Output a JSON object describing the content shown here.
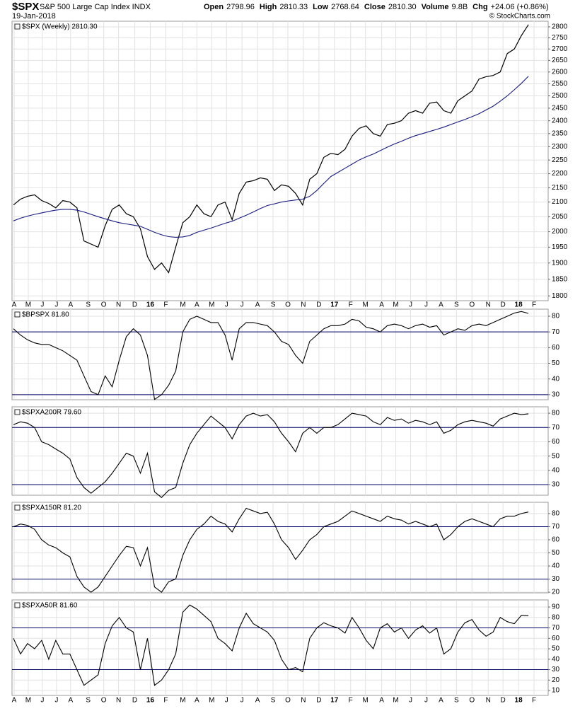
{
  "header": {
    "symbol": "$SPX",
    "name": "S&P 500 Large Cap Index INDX",
    "date": "19-Jan-2018",
    "quote": [
      {
        "label": "Open",
        "value": "2798.96"
      },
      {
        "label": "High",
        "value": "2810.33"
      },
      {
        "label": "Low",
        "value": "2768.64"
      },
      {
        "label": "Close",
        "value": "2810.30"
      },
      {
        "label": "Volume",
        "value": "9.8B"
      },
      {
        "label": "Chg",
        "value": "+24.06 (+0.86%)"
      }
    ],
    "credit": "© StockCharts.com"
  },
  "chart_data": [
    {
      "type": "line",
      "title": "$SPX (Weekly) 2810.30",
      "log_scale": true,
      "grid": true,
      "xlim": [
        -0.2,
        75.8
      ],
      "xticks": [
        {
          "value": 0.1,
          "label": "A"
        },
        {
          "value": 2.1,
          "label": "M"
        },
        {
          "value": 4.1,
          "label": "J"
        },
        {
          "value": 6.1,
          "label": "J"
        },
        {
          "value": 8.1,
          "label": "A"
        },
        {
          "value": 10.6,
          "label": "S"
        },
        {
          "value": 12.8,
          "label": "O"
        },
        {
          "value": 14.9,
          "label": "N"
        },
        {
          "value": 17.2,
          "label": "D"
        },
        {
          "value": 19.4,
          "label": "16"
        },
        {
          "value": 21.6,
          "label": "F"
        },
        {
          "value": 24.0,
          "label": "M"
        },
        {
          "value": 26.0,
          "label": "A"
        },
        {
          "value": 28.1,
          "label": "M"
        },
        {
          "value": 30.2,
          "label": "J"
        },
        {
          "value": 32.4,
          "label": "J"
        },
        {
          "value": 34.6,
          "label": "A"
        },
        {
          "value": 36.8,
          "label": "S"
        },
        {
          "value": 38.9,
          "label": "O"
        },
        {
          "value": 41.1,
          "label": "N"
        },
        {
          "value": 43.3,
          "label": "D"
        },
        {
          "value": 45.5,
          "label": "17"
        },
        {
          "value": 47.8,
          "label": "F"
        },
        {
          "value": 49.9,
          "label": "M"
        },
        {
          "value": 52.2,
          "label": "A"
        },
        {
          "value": 54.2,
          "label": "M"
        },
        {
          "value": 56.3,
          "label": "J"
        },
        {
          "value": 58.5,
          "label": "J"
        },
        {
          "value": 60.6,
          "label": "A"
        },
        {
          "value": 62.8,
          "label": "S"
        },
        {
          "value": 65.0,
          "label": "O"
        },
        {
          "value": 67.3,
          "label": "N"
        },
        {
          "value": 69.4,
          "label": "D"
        },
        {
          "value": 71.6,
          "label": "18"
        },
        {
          "value": 73.8,
          "label": "F"
        }
      ],
      "ylim": [
        1786,
        2826
      ],
      "yticks": [
        1800,
        1850,
        1900,
        1950,
        2000,
        2050,
        2100,
        2150,
        2200,
        2250,
        2300,
        2350,
        2400,
        2450,
        2500,
        2550,
        2600,
        2650,
        2700,
        2750,
        2800
      ],
      "series": [
        {
          "color": "#000000",
          "values": [
            2090,
            2110,
            2120,
            2125,
            2105,
            2095,
            2080,
            2105,
            2100,
            2080,
            1970,
            1960,
            1950,
            2020,
            2075,
            2090,
            2060,
            2050,
            2010,
            1920,
            1880,
            1900,
            1870,
            1950,
            2030,
            2050,
            2090,
            2060,
            2050,
            2090,
            2100,
            2040,
            2130,
            2170,
            2175,
            2185,
            2180,
            2140,
            2160,
            2155,
            2130,
            2090,
            2180,
            2200,
            2260,
            2275,
            2270,
            2290,
            2340,
            2370,
            2380,
            2350,
            2340,
            2385,
            2390,
            2400,
            2430,
            2440,
            2430,
            2470,
            2475,
            2440,
            2430,
            2480,
            2500,
            2520,
            2570,
            2580,
            2585,
            2600,
            2680,
            2700,
            2760,
            2810.3
          ]
        },
        {
          "color": "#1a1a80",
          "values": [
            2036,
            2045,
            2052,
            2058,
            2063,
            2068,
            2072,
            2075,
            2075,
            2072,
            2066,
            2058,
            2050,
            2043,
            2036,
            2030,
            2026,
            2022,
            2018,
            2008,
            1998,
            1990,
            1984,
            1982,
            1983,
            1988,
            1998,
            2005,
            2012,
            2020,
            2028,
            2035,
            2045,
            2055,
            2066,
            2078,
            2088,
            2094,
            2100,
            2104,
            2107,
            2110,
            2120,
            2140,
            2165,
            2190,
            2205,
            2220,
            2235,
            2250,
            2262,
            2272,
            2285,
            2298,
            2310,
            2320,
            2332,
            2342,
            2350,
            2358,
            2366,
            2375,
            2385,
            2395,
            2405,
            2416,
            2428,
            2443,
            2458,
            2478,
            2500,
            2525,
            2552,
            2582
          ]
        }
      ]
    },
    {
      "type": "line",
      "title": "$BPSPX 81.80",
      "grid": true,
      "ylim": [
        26.8,
        84.5
      ],
      "yticks": [
        30,
        40,
        50,
        60,
        70,
        80
      ],
      "reference_lines": [
        70,
        30
      ],
      "series": [
        {
          "color": "#000000",
          "values": [
            72,
            68,
            65,
            63,
            62,
            62,
            60,
            58,
            55,
            52,
            42,
            32,
            30,
            42,
            35,
            52,
            67,
            72,
            68,
            55,
            27,
            30,
            36,
            45,
            70,
            78,
            80,
            78,
            76,
            76,
            68,
            52,
            72,
            76,
            76,
            75,
            74,
            70,
            64,
            62,
            55,
            50,
            64,
            68,
            72,
            74,
            74,
            75,
            78,
            77,
            73,
            72,
            70,
            74,
            75,
            74,
            72,
            74,
            75,
            73,
            74,
            68,
            70,
            72,
            71,
            74,
            75,
            74,
            76,
            78,
            80,
            82,
            83,
            81.8
          ]
        }
      ]
    },
    {
      "type": "line",
      "title": "$SPXA200R 79.60",
      "grid": true,
      "ylim": [
        22.6,
        84.5
      ],
      "yticks": [
        30,
        40,
        50,
        60,
        70,
        80
      ],
      "reference_lines": [
        70,
        30
      ],
      "series": [
        {
          "color": "#000000",
          "values": [
            72,
            74,
            73,
            70,
            60,
            58,
            55,
            52,
            48,
            35,
            28,
            24,
            28,
            32,
            38,
            45,
            52,
            50,
            38,
            52,
            25,
            21,
            26,
            28,
            45,
            58,
            66,
            72,
            78,
            74,
            70,
            62,
            72,
            78,
            80,
            78,
            79,
            74,
            66,
            60,
            53,
            66,
            70,
            66,
            70,
            70,
            72,
            76,
            80,
            79,
            78,
            74,
            72,
            77,
            75,
            76,
            73,
            75,
            74,
            72,
            74,
            66,
            68,
            72,
            74,
            75,
            74,
            73,
            71,
            76,
            78,
            80,
            79,
            79.6
          ]
        }
      ]
    },
    {
      "type": "line",
      "title": "$SPXA150R 81.20",
      "grid": true,
      "ylim": [
        19.5,
        88.6
      ],
      "yticks": [
        20,
        30,
        40,
        50,
        60,
        70,
        80
      ],
      "reference_lines": [
        70,
        30
      ],
      "series": [
        {
          "color": "#000000",
          "values": [
            70,
            72,
            71,
            68,
            60,
            56,
            54,
            50,
            47,
            32,
            24,
            20,
            24,
            32,
            40,
            48,
            55,
            54,
            40,
            54,
            24,
            20,
            28,
            30,
            48,
            60,
            68,
            72,
            78,
            74,
            72,
            66,
            76,
            84,
            82,
            80,
            81,
            72,
            60,
            54,
            45,
            52,
            60,
            64,
            70,
            72,
            74,
            78,
            82,
            80,
            78,
            76,
            74,
            78,
            76,
            75,
            72,
            74,
            72,
            70,
            72,
            60,
            64,
            70,
            74,
            76,
            74,
            72,
            70,
            76,
            78,
            78,
            80,
            81.2
          ]
        }
      ]
    },
    {
      "type": "line",
      "title": "$SPXA50R 81.60",
      "grid": true,
      "ylim": [
        5.3,
        96.8
      ],
      "yticks": [
        10,
        20,
        30,
        40,
        50,
        60,
        70,
        80,
        90
      ],
      "reference_lines": [
        70,
        30
      ],
      "series": [
        {
          "color": "#000000",
          "values": [
            60,
            45,
            55,
            50,
            58,
            40,
            58,
            45,
            45,
            30,
            15,
            20,
            25,
            55,
            72,
            80,
            70,
            66,
            30,
            60,
            15,
            20,
            30,
            45,
            85,
            92,
            88,
            82,
            76,
            60,
            55,
            48,
            70,
            84,
            74,
            70,
            66,
            58,
            40,
            30,
            32,
            28,
            60,
            70,
            75,
            72,
            70,
            65,
            80,
            70,
            58,
            50,
            70,
            74,
            66,
            70,
            60,
            68,
            72,
            65,
            70,
            45,
            50,
            66,
            75,
            78,
            68,
            62,
            66,
            80,
            76,
            74,
            82,
            81.6
          ]
        }
      ]
    }
  ]
}
